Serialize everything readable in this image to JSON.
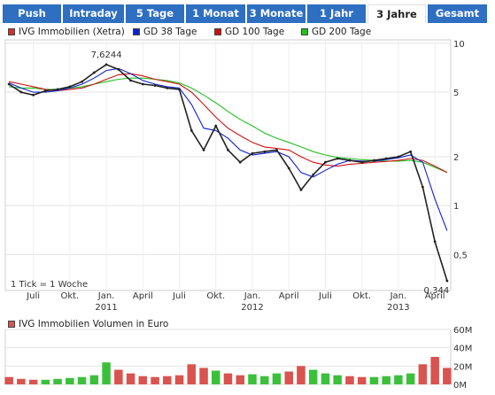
{
  "tabs": [
    {
      "label": "Push",
      "active": false
    },
    {
      "label": "Intraday",
      "active": false
    },
    {
      "label": "5 Tage",
      "active": false
    },
    {
      "label": "1 Monat",
      "active": false
    },
    {
      "label": "3 Monate",
      "active": false
    },
    {
      "label": "1 Jahr",
      "active": false
    },
    {
      "label": "3 Jahre",
      "active": true
    },
    {
      "label": "Gesamt",
      "active": false
    }
  ],
  "colors": {
    "tab_bg": "#2e6fc2",
    "price": "#d32f2f",
    "gd38": "#1020d0",
    "gd100": "#d01010",
    "gd200": "#22c022",
    "volume": "#d9534f",
    "volume_up": "#3cc03c"
  },
  "chart_data": [
    {
      "type": "line",
      "legend": [
        {
          "label": "IVG Immobilien (Xetra)",
          "color": "#d32f2f"
        },
        {
          "label": "GD 38 Tage",
          "color": "#1020d0"
        },
        {
          "label": "GD 100 Tage",
          "color": "#d01010"
        },
        {
          "label": "GD 200 Tage",
          "color": "#22c022"
        }
      ],
      "y_scale": "log",
      "y_ticks": [
        "10",
        "5",
        "2",
        "1",
        "0,5"
      ],
      "y_tick_values": [
        10,
        5,
        2,
        1,
        0.5
      ],
      "ylim": [
        0.3,
        10.5
      ],
      "x_month_labels": [
        "Juli",
        "Okt.",
        "Jan.",
        "April",
        "Juli",
        "Okt.",
        "Jan.",
        "April",
        "Juli",
        "Okt.",
        "Jan.",
        "April"
      ],
      "x_month_values": [
        "2010-07",
        "2010-10",
        "2011-01",
        "2011-04",
        "2011-07",
        "2011-10",
        "2012-01",
        "2012-04",
        "2012-07",
        "2012-10",
        "2013-01",
        "2013-04"
      ],
      "x_year_labels": [
        "2011",
        "2012",
        "2013"
      ],
      "x_year_values": [
        "2011-01",
        "2012-01",
        "2013-01"
      ],
      "annotation_high": "7,6244",
      "annotation_low": "0,344",
      "tick_note": "1 Tick = 1 Woche",
      "series": [
        {
          "name": "IVG Immobilien (Xetra)",
          "x": [
            "2010-05",
            "2010-06",
            "2010-07",
            "2010-08",
            "2010-09",
            "2010-10",
            "2010-11",
            "2010-12",
            "2011-01",
            "2011-02",
            "2011-03",
            "2011-04",
            "2011-05",
            "2011-06",
            "2011-07",
            "2011-08",
            "2011-09",
            "2011-10",
            "2011-11",
            "2011-12",
            "2012-01",
            "2012-02",
            "2012-03",
            "2012-04",
            "2012-05",
            "2012-06",
            "2012-07",
            "2012-08",
            "2012-09",
            "2012-10",
            "2012-11",
            "2012-12",
            "2013-01",
            "2013-02",
            "2013-03",
            "2013-04",
            "2013-05"
          ],
          "values": [
            5.6,
            5.0,
            4.8,
            5.1,
            5.2,
            5.4,
            5.8,
            6.6,
            7.4,
            6.9,
            5.9,
            5.6,
            5.5,
            5.3,
            5.2,
            2.9,
            2.2,
            3.1,
            2.2,
            1.85,
            2.1,
            2.15,
            2.2,
            1.7,
            1.25,
            1.55,
            1.85,
            1.95,
            1.9,
            1.85,
            1.9,
            1.95,
            2.0,
            2.15,
            1.3,
            0.6,
            0.344
          ]
        },
        {
          "name": "GD 38 Tage",
          "x": [
            "2010-05",
            "2010-06",
            "2010-07",
            "2010-08",
            "2010-09",
            "2010-10",
            "2010-11",
            "2010-12",
            "2011-01",
            "2011-02",
            "2011-03",
            "2011-04",
            "2011-05",
            "2011-06",
            "2011-07",
            "2011-08",
            "2011-09",
            "2011-10",
            "2011-11",
            "2011-12",
            "2012-01",
            "2012-02",
            "2012-03",
            "2012-04",
            "2012-05",
            "2012-06",
            "2012-07",
            "2012-08",
            "2012-09",
            "2012-10",
            "2012-11",
            "2012-12",
            "2013-01",
            "2013-02",
            "2013-03",
            "2013-04",
            "2013-05"
          ],
          "values": [
            5.7,
            5.3,
            5.0,
            5.0,
            5.1,
            5.3,
            5.6,
            6.1,
            6.8,
            7.0,
            6.5,
            5.9,
            5.6,
            5.4,
            5.3,
            4.2,
            3.0,
            2.9,
            2.6,
            2.2,
            2.05,
            2.1,
            2.15,
            2.0,
            1.6,
            1.5,
            1.65,
            1.8,
            1.9,
            1.88,
            1.88,
            1.92,
            1.97,
            2.05,
            1.85,
            1.1,
            0.7
          ]
        },
        {
          "name": "GD 100 Tage",
          "x": [
            "2010-05",
            "2010-06",
            "2010-07",
            "2010-08",
            "2010-09",
            "2010-10",
            "2010-11",
            "2010-12",
            "2011-01",
            "2011-02",
            "2011-03",
            "2011-04",
            "2011-05",
            "2011-06",
            "2011-07",
            "2011-08",
            "2011-09",
            "2011-10",
            "2011-11",
            "2011-12",
            "2012-01",
            "2012-02",
            "2012-03",
            "2012-04",
            "2012-05",
            "2012-06",
            "2012-07",
            "2012-08",
            "2012-09",
            "2012-10",
            "2012-11",
            "2012-12",
            "2013-01",
            "2013-02",
            "2013-03",
            "2013-04",
            "2013-05"
          ],
          "values": [
            5.8,
            5.6,
            5.4,
            5.2,
            5.1,
            5.2,
            5.3,
            5.6,
            6.0,
            6.4,
            6.5,
            6.3,
            6.0,
            5.8,
            5.6,
            5.0,
            4.2,
            3.5,
            3.0,
            2.7,
            2.45,
            2.3,
            2.25,
            2.2,
            2.0,
            1.85,
            1.78,
            1.75,
            1.8,
            1.82,
            1.85,
            1.87,
            1.9,
            1.95,
            1.9,
            1.75,
            1.6
          ]
        },
        {
          "name": "GD 200 Tage",
          "x": [
            "2010-05",
            "2010-06",
            "2010-07",
            "2010-08",
            "2010-09",
            "2010-10",
            "2010-11",
            "2010-12",
            "2011-01",
            "2011-02",
            "2011-03",
            "2011-04",
            "2011-05",
            "2011-06",
            "2011-07",
            "2011-08",
            "2011-09",
            "2011-10",
            "2011-11",
            "2011-12",
            "2012-01",
            "2012-02",
            "2012-03",
            "2012-04",
            "2012-05",
            "2012-06",
            "2012-07",
            "2012-08",
            "2012-09",
            "2012-10",
            "2012-11",
            "2012-12",
            "2013-01",
            "2013-02",
            "2013-03",
            "2013-04",
            "2013-05"
          ],
          "values": [
            5.4,
            5.3,
            5.3,
            5.2,
            5.2,
            5.3,
            5.4,
            5.6,
            5.8,
            6.0,
            6.1,
            6.1,
            6.0,
            5.9,
            5.7,
            5.3,
            4.8,
            4.3,
            3.8,
            3.4,
            3.1,
            2.8,
            2.6,
            2.45,
            2.3,
            2.15,
            2.05,
            1.98,
            1.95,
            1.92,
            1.9,
            1.88,
            1.88,
            1.9,
            1.85,
            1.72,
            1.6
          ]
        }
      ]
    },
    {
      "type": "bar",
      "legend": [
        {
          "label": "IVG Immobilien Volumen in Euro",
          "color": "#d9534f"
        }
      ],
      "y_ticks": [
        "60M",
        "40M",
        "20M",
        "0M"
      ],
      "y_tick_values": [
        60,
        40,
        20,
        0
      ],
      "ylim": [
        0,
        60
      ],
      "unit": "M",
      "x": [
        "2010-05",
        "2010-06",
        "2010-07",
        "2010-08",
        "2010-09",
        "2010-10",
        "2010-11",
        "2010-12",
        "2011-01",
        "2011-02",
        "2011-03",
        "2011-04",
        "2011-05",
        "2011-06",
        "2011-07",
        "2011-08",
        "2011-09",
        "2011-10",
        "2011-11",
        "2011-12",
        "2012-01",
        "2012-02",
        "2012-03",
        "2012-04",
        "2012-05",
        "2012-06",
        "2012-07",
        "2012-08",
        "2012-09",
        "2012-10",
        "2012-11",
        "2012-12",
        "2013-01",
        "2013-02",
        "2013-03",
        "2013-04",
        "2013-05"
      ],
      "values": [
        8,
        6,
        5,
        5,
        6,
        7,
        8,
        10,
        24,
        16,
        12,
        9,
        8,
        9,
        10,
        22,
        18,
        15,
        12,
        10,
        11,
        9,
        12,
        14,
        20,
        16,
        12,
        10,
        9,
        8,
        8,
        9,
        10,
        12,
        22,
        30,
        18
      ]
    }
  ]
}
